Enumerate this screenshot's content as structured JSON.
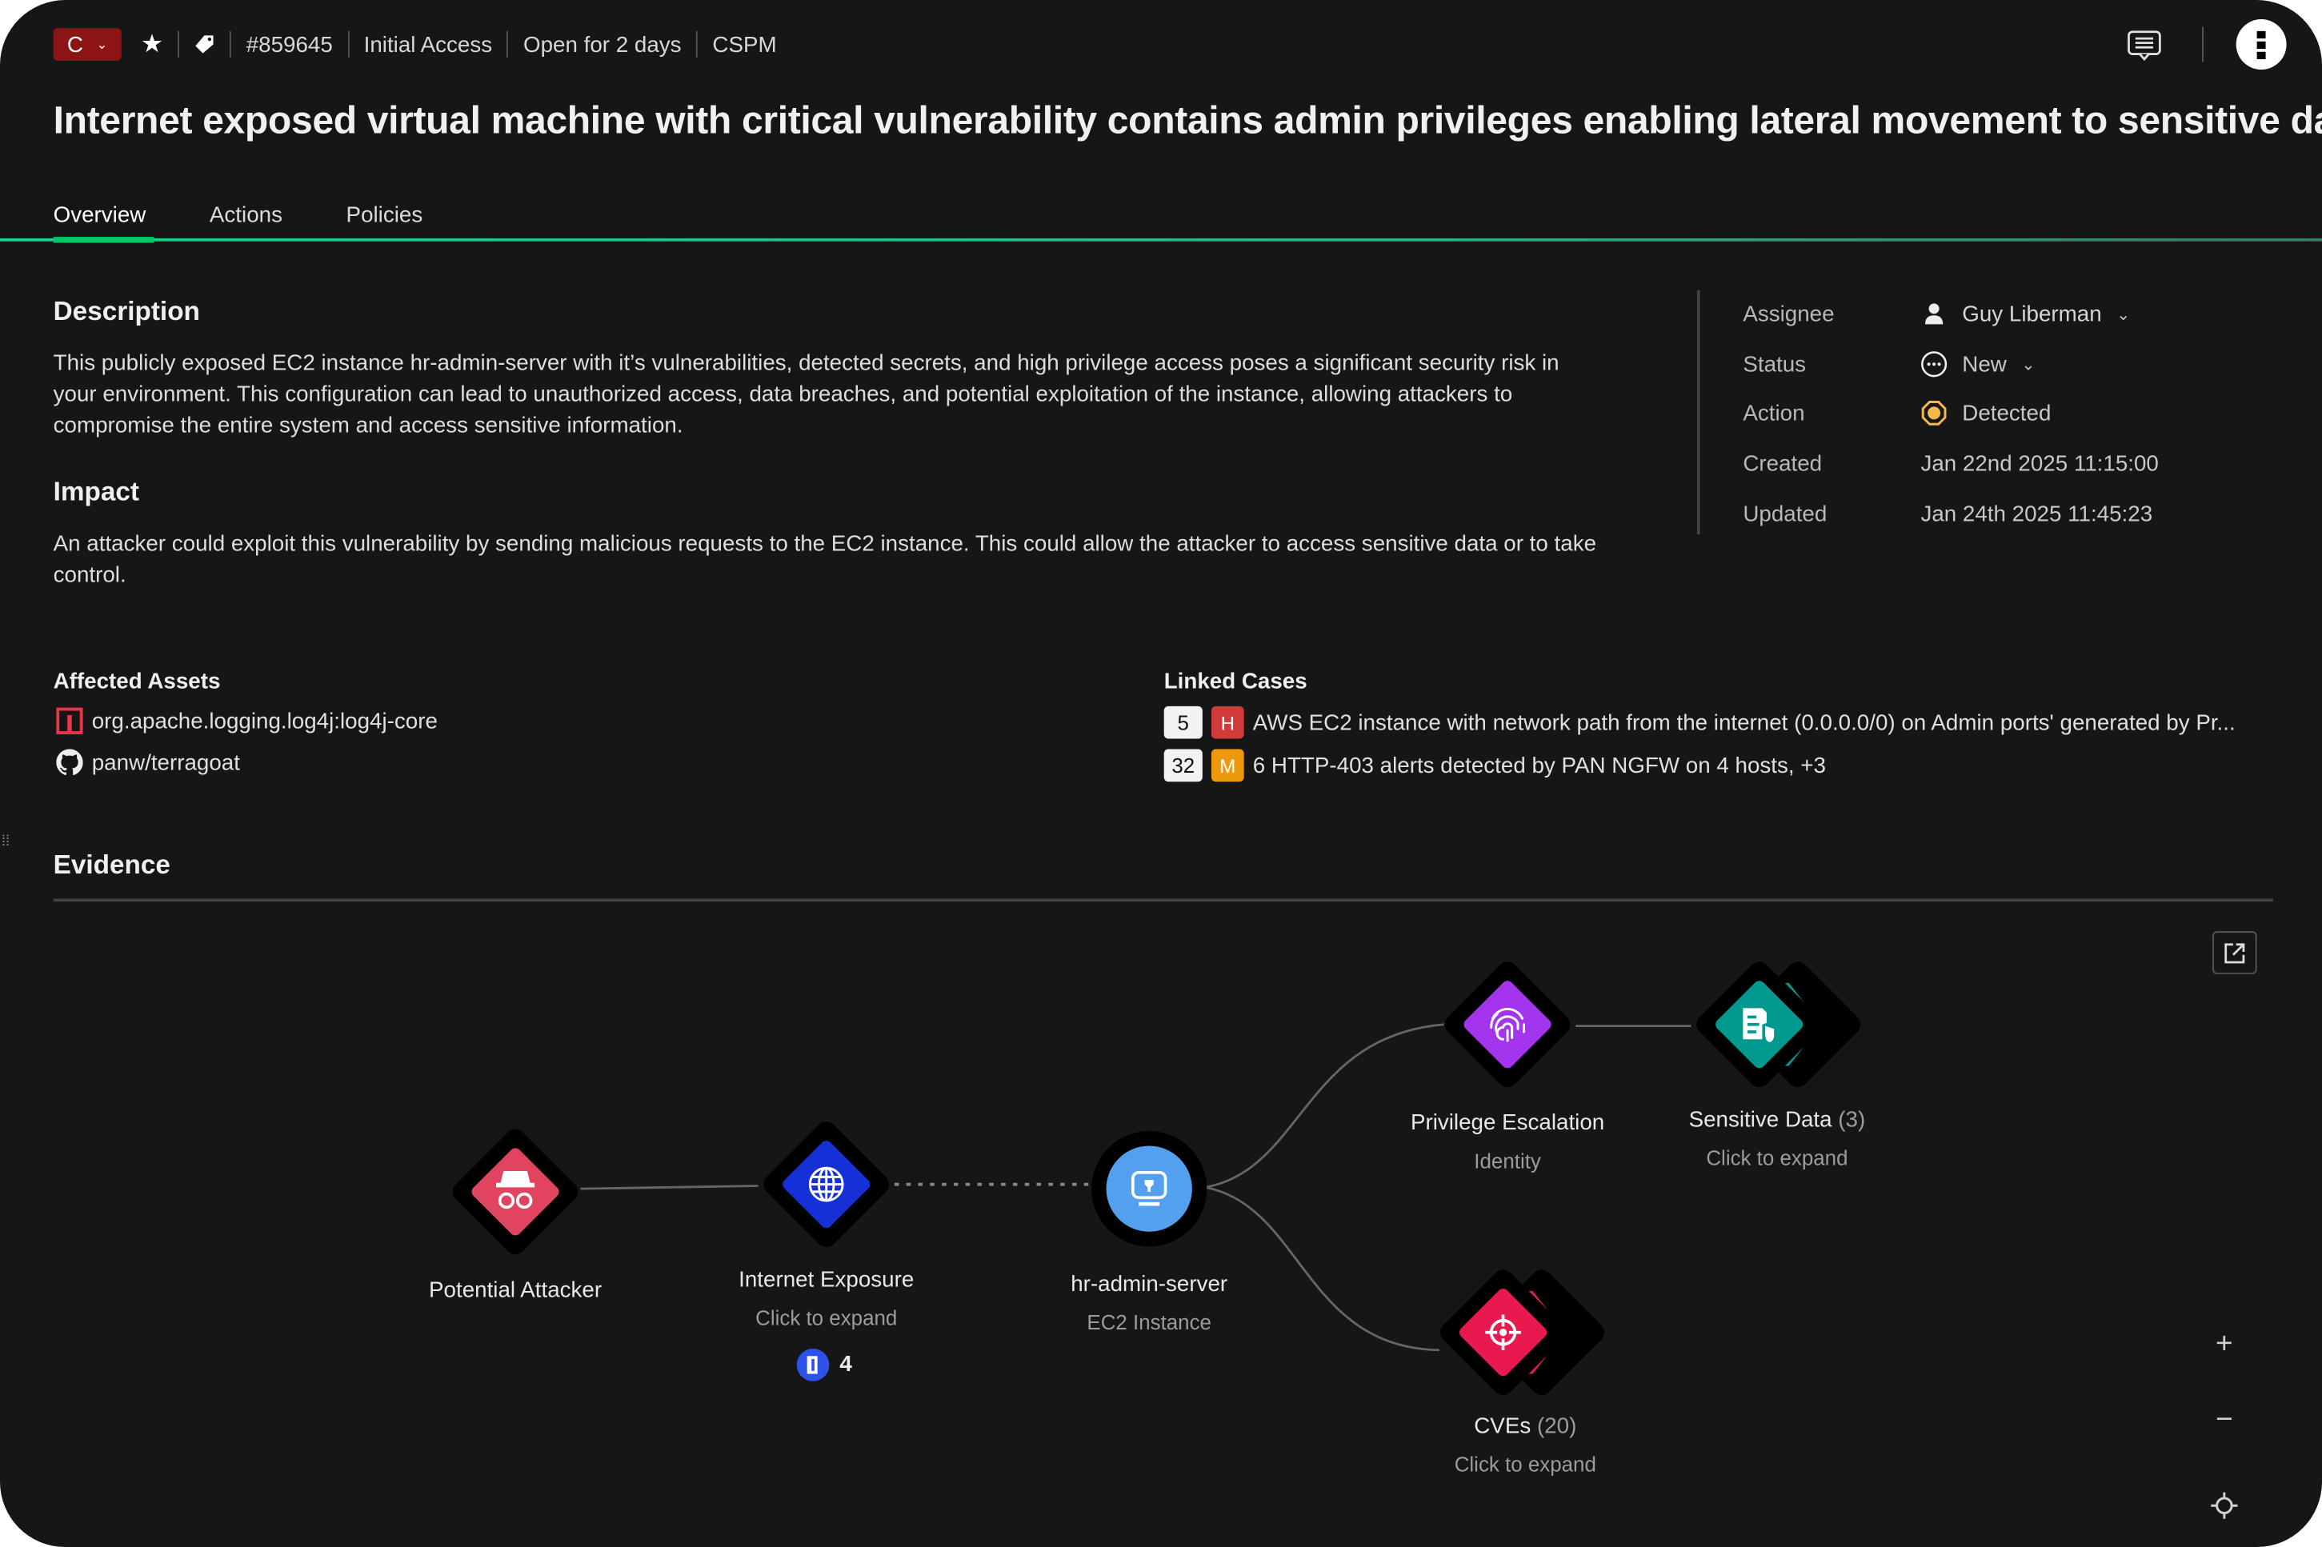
{
  "header": {
    "severity": "C",
    "case_id": "#859645",
    "category": "Initial Access",
    "open_duration": "Open for 2 days",
    "source": "CSPM",
    "title": "Internet exposed virtual machine with critical vulnerability contains admin privileges enabling lateral movement to sensitive data"
  },
  "tabs": [
    {
      "label": "Overview",
      "active": true
    },
    {
      "label": "Actions"
    },
    {
      "label": "Policies"
    }
  ],
  "description": {
    "heading": "Description",
    "text": "This publicly exposed EC2 instance hr-admin-server with it’s vulnerabilities, detected secrets, and high privilege access poses a significant security risk in your environment. This configuration can lead to unauthorized access, data breaches, and potential exploitation of the instance, allowing attackers to compromise the entire system and access sensitive information."
  },
  "impact": {
    "heading": "Impact",
    "text": "An attacker could exploit this vulnerability by sending malicious requests to the EC2 instance. This could allow the attacker to access sensitive data or to take control."
  },
  "meta": {
    "assignee_label": "Assignee",
    "assignee": "Guy Liberman",
    "status_label": "Status",
    "status": "New",
    "action_label": "Action",
    "action": "Detected",
    "created_label": "Created",
    "created": "Jan 22nd 2025 11:15:00",
    "updated_label": "Updated",
    "updated": "Jan 24th 2025 11:45:23"
  },
  "affected_assets": {
    "heading": "Affected Assets",
    "items": [
      {
        "icon": "maven-icon",
        "label": "org.apache.logging.log4j:log4j-core"
      },
      {
        "icon": "github-icon",
        "label": "panw/terragoat"
      }
    ]
  },
  "linked_cases": {
    "heading": "Linked Cases",
    "items": [
      {
        "count": "5",
        "severity": "H",
        "severity_color": "#d13b3b",
        "label": "AWS EC2 instance with network path from the internet (0.0.0.0/0) on Admin ports' generated by Pr..."
      },
      {
        "count": "32",
        "severity": "M",
        "severity_color": "#ec9a0c",
        "label": "6 HTTP-403 alerts detected by PAN NGFW on 4 hosts, +3"
      }
    ]
  },
  "evidence": {
    "heading": "Evidence",
    "nodes": {
      "attacker": {
        "label": "Potential Attacker",
        "color": "#e0445f",
        "icon": "spy-icon"
      },
      "internet": {
        "label": "Internet Exposure",
        "sub": "Click to expand",
        "color": "#1430d6",
        "icon": "globe-icon",
        "badge_count": "4"
      },
      "server": {
        "label": "hr-admin-server",
        "sub": "EC2 Instance",
        "color": "#52a0ee",
        "icon": "ec2-icon"
      },
      "privilege": {
        "label": "Privilege Escalation",
        "sub": "Identity",
        "color": "#a435ee",
        "icon": "fingerprint-icon"
      },
      "sensitive": {
        "label": "Sensitive Data",
        "count": "(3)",
        "sub": "Click to expand",
        "color": "#009990",
        "icon": "document-shield-icon"
      },
      "cves": {
        "label": "CVEs",
        "count": "(20)",
        "sub": "Click to expand",
        "color": "#e8194f",
        "icon": "crosshair-icon"
      }
    }
  },
  "colors": {
    "accent": "#00c865",
    "background": "#161616"
  }
}
